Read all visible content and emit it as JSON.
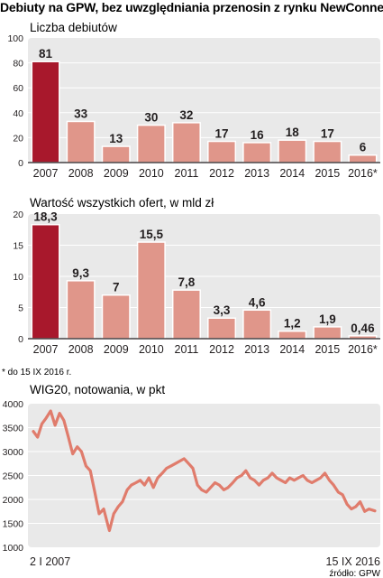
{
  "figure": {
    "title": "Debiuty na GPW, bez uwzględniania przenosin z rynku NewConnect",
    "footnote": "* do 15 IX 2016 r.",
    "source": "źródło: GPW",
    "colors": {
      "highlight_bar": "#a8182c",
      "bar": "#e0968a",
      "bar_edge": "#ffffff",
      "plot_bg": "#e9e9e9",
      "grid": "#ffffff",
      "line": "#e07c6c",
      "text": "#231f20"
    }
  },
  "chart_data": [
    {
      "type": "bar",
      "title": "Liczba debiutów",
      "xlabel": "",
      "ylabel": "",
      "categories": [
        "2007",
        "2008",
        "2009",
        "2010",
        "2011",
        "2012",
        "2013",
        "2014",
        "2015",
        "2016*"
      ],
      "values": [
        81,
        33,
        13,
        30,
        32,
        17,
        16,
        18,
        17,
        6
      ],
      "value_labels": [
        "81",
        "33",
        "13",
        "30",
        "32",
        "17",
        "16",
        "18",
        "17",
        "6"
      ],
      "ylim": [
        0,
        100
      ],
      "yticks": [
        0,
        20,
        40,
        60,
        80,
        100
      ],
      "highlight_index": 0,
      "grid": true,
      "legend": "none"
    },
    {
      "type": "bar",
      "title": "Wartość wszystkich ofert, w mld zł",
      "xlabel": "",
      "ylabel": "",
      "categories": [
        "2007",
        "2008",
        "2009",
        "2010",
        "2011",
        "2012",
        "2013",
        "2014",
        "2015",
        "2016*"
      ],
      "values": [
        18.3,
        9.3,
        7,
        15.5,
        7.8,
        3.3,
        4.6,
        1.2,
        1.9,
        0.46
      ],
      "value_labels": [
        "18,3",
        "9,3",
        "7",
        "15,5",
        "7,8",
        "3,3",
        "4,6",
        "1,2",
        "1,9",
        "0,46"
      ],
      "ylim": [
        0,
        20
      ],
      "yticks": [
        0,
        5,
        10,
        15,
        20
      ],
      "highlight_index": 0,
      "grid": true,
      "legend": "none"
    },
    {
      "type": "line",
      "title": "WIG20, notowania, w pkt",
      "xlabel": "",
      "ylabel": "",
      "x_start_label": "2 I 2007",
      "x_end_label": "15 IX 2016",
      "x": [
        "2007-01-02",
        "2007-02-15",
        "2007-04-01",
        "2007-05-15",
        "2007-07-01",
        "2007-08-15",
        "2007-10-01",
        "2007-11-15",
        "2008-01-01",
        "2008-02-15",
        "2008-04-01",
        "2008-05-15",
        "2008-07-01",
        "2008-08-15",
        "2008-10-01",
        "2008-11-15",
        "2009-01-01",
        "2009-02-15",
        "2009-03-01",
        "2009-04-15",
        "2009-06-01",
        "2009-07-15",
        "2009-09-01",
        "2009-10-15",
        "2009-12-01",
        "2010-01-15",
        "2010-03-01",
        "2010-04-15",
        "2010-06-01",
        "2010-07-15",
        "2010-09-01",
        "2010-10-15",
        "2010-12-01",
        "2011-01-15",
        "2011-03-01",
        "2011-04-15",
        "2011-06-01",
        "2011-07-15",
        "2011-09-01",
        "2011-10-15",
        "2011-12-01",
        "2012-01-15",
        "2012-03-01",
        "2012-04-15",
        "2012-06-01",
        "2012-07-15",
        "2012-09-01",
        "2012-10-15",
        "2012-12-01",
        "2013-01-15",
        "2013-03-01",
        "2013-04-15",
        "2013-06-01",
        "2013-07-15",
        "2013-09-01",
        "2013-10-15",
        "2013-12-01",
        "2014-01-15",
        "2014-03-01",
        "2014-04-15",
        "2014-06-01",
        "2014-07-15",
        "2014-09-01",
        "2014-10-15",
        "2014-12-01",
        "2015-01-15",
        "2015-03-01",
        "2015-04-15",
        "2015-06-01",
        "2015-07-15",
        "2015-09-01",
        "2015-10-15",
        "2015-12-01",
        "2016-01-15",
        "2016-03-01",
        "2016-04-15",
        "2016-06-01",
        "2016-07-15",
        "2016-09-15"
      ],
      "values": [
        3420,
        3300,
        3580,
        3700,
        3850,
        3550,
        3800,
        3650,
        3300,
        2950,
        3100,
        3000,
        2700,
        2600,
        2150,
        1700,
        1800,
        1450,
        1350,
        1700,
        1850,
        1950,
        2200,
        2300,
        2350,
        2400,
        2300,
        2450,
        2250,
        2450,
        2550,
        2650,
        2700,
        2750,
        2800,
        2850,
        2750,
        2650,
        2300,
        2200,
        2150,
        2250,
        2350,
        2300,
        2200,
        2250,
        2350,
        2450,
        2500,
        2600,
        2450,
        2400,
        2300,
        2400,
        2450,
        2550,
        2450,
        2400,
        2350,
        2450,
        2400,
        2450,
        2500,
        2400,
        2350,
        2400,
        2450,
        2550,
        2400,
        2300,
        2150,
        2100,
        1900,
        1800,
        1850,
        1950,
        1750,
        1800,
        1760
      ],
      "ylim": [
        1000,
        4000
      ],
      "yticks": [
        1000,
        1500,
        2000,
        2500,
        3000,
        3500,
        4000
      ],
      "grid": true,
      "legend": "none"
    }
  ]
}
